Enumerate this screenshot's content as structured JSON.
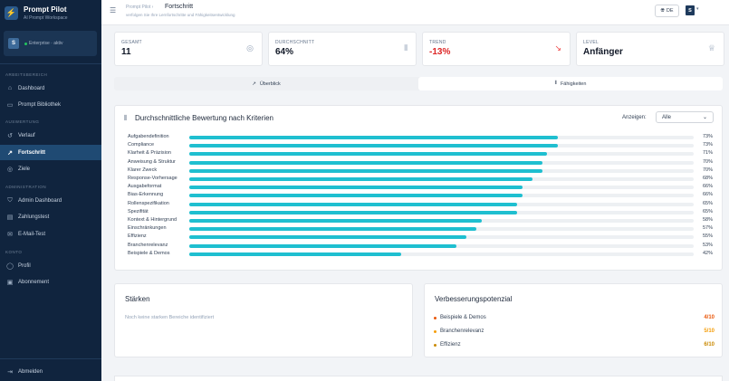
{
  "app": {
    "title": "Prompt Pilot",
    "subtitle": "AI Prompt Workspace",
    "logo_icon": "bolt-icon"
  },
  "user": {
    "avatar_letter": "S",
    "plan": "Enterprise · aktiv"
  },
  "sidebar": {
    "sections": [
      {
        "label": "ARBEITSBEREICH",
        "items": [
          {
            "label": "Dashboard",
            "icon": "home-icon"
          },
          {
            "label": "Prompt Bibliothek",
            "icon": "folder-icon"
          }
        ]
      },
      {
        "label": "AUSWERTUNG",
        "items": [
          {
            "label": "Verlauf",
            "icon": "history-icon"
          },
          {
            "label": "Fortschritt",
            "icon": "trend-icon",
            "active": true
          },
          {
            "label": "Ziele",
            "icon": "target-icon"
          }
        ]
      },
      {
        "label": "ADMINISTRATION",
        "items": [
          {
            "label": "Admin Dashboard",
            "icon": "shield-icon"
          },
          {
            "label": "Zahlungstest",
            "icon": "card-icon"
          },
          {
            "label": "E-Mail-Test",
            "icon": "mail-icon"
          }
        ]
      },
      {
        "label": "KONTO",
        "items": [
          {
            "label": "Profil",
            "icon": "user-icon"
          },
          {
            "label": "Abonnement",
            "icon": "subscription-icon"
          }
        ]
      }
    ],
    "logout": "Abmelden"
  },
  "header": {
    "breadcrumb_parent": "Prompt Pilot",
    "breadcrumb_sep": "›",
    "title": "Fortschritt",
    "subtitle": "verfolgen Sie Ihre Lernfortschritte und Fähigkeitsentwicklung",
    "lang": "DE",
    "avatar_letter": "S"
  },
  "stats": [
    {
      "label": "GESAMT",
      "value": "11",
      "icon": "target-icon"
    },
    {
      "label": "DURCHSCHNITT",
      "value": "64%",
      "icon": "bar-chart-icon"
    },
    {
      "label": "TREND",
      "value": "-13%",
      "icon": "trend-down-icon",
      "negative": true
    },
    {
      "label": "LEVEL",
      "value": "Anfänger",
      "icon": "trophy-icon"
    }
  ],
  "tabs": [
    {
      "label": "Überblick",
      "icon": "trend-up-icon"
    },
    {
      "label": "Fähigkeiten",
      "icon": "bar-chart-icon",
      "active": true
    }
  ],
  "criteria": {
    "title": "Durchschnittliche Bewertung nach Kriterien",
    "show_label": "Anzeigen:",
    "show_value": "Alle",
    "bar_color": "#1fbfd0",
    "items": [
      {
        "name": "Aufgabendefinition",
        "value": 73,
        "label": "73%"
      },
      {
        "name": "Compliance",
        "value": 73,
        "label": "73%"
      },
      {
        "name": "Klarheit & Präzision",
        "value": 71,
        "label": "71%"
      },
      {
        "name": "Anweisung & Struktur",
        "value": 70,
        "label": "70%"
      },
      {
        "name": "Klarer Zweck",
        "value": 70,
        "label": "70%"
      },
      {
        "name": "Response-Vorhersage",
        "value": 68,
        "label": "68%"
      },
      {
        "name": "Ausgabeformat",
        "value": 66,
        "label": "66%"
      },
      {
        "name": "Bias-Erkennung",
        "value": 66,
        "label": "66%"
      },
      {
        "name": "Rollenspezifikation",
        "value": 65,
        "label": "65%"
      },
      {
        "name": "Spezifität",
        "value": 65,
        "label": "65%"
      },
      {
        "name": "Kontext & Hintergrund",
        "value": 58,
        "label": "58%"
      },
      {
        "name": "Einschränkungen",
        "value": 57,
        "label": "57%"
      },
      {
        "name": "Effizienz",
        "value": 55,
        "label": "55%"
      },
      {
        "name": "Branchenrelevanz",
        "value": 53,
        "label": "53%"
      },
      {
        "name": "Beispiele & Demos",
        "value": 42,
        "label": "42%"
      }
    ]
  },
  "strengths": {
    "title": "Stärken",
    "empty": "Noch keine starken Bereiche identifiziert"
  },
  "improvement": {
    "title": "Verbesserungspotenzial",
    "items": [
      {
        "name": "Beispiele & Demos",
        "score": "4/10",
        "color": "#ea580c"
      },
      {
        "name": "Branchenrelevanz",
        "score": "5/10",
        "color": "#f59e0b"
      },
      {
        "name": "Effizienz",
        "score": "6/10",
        "color": "#ca8a04"
      }
    ]
  }
}
